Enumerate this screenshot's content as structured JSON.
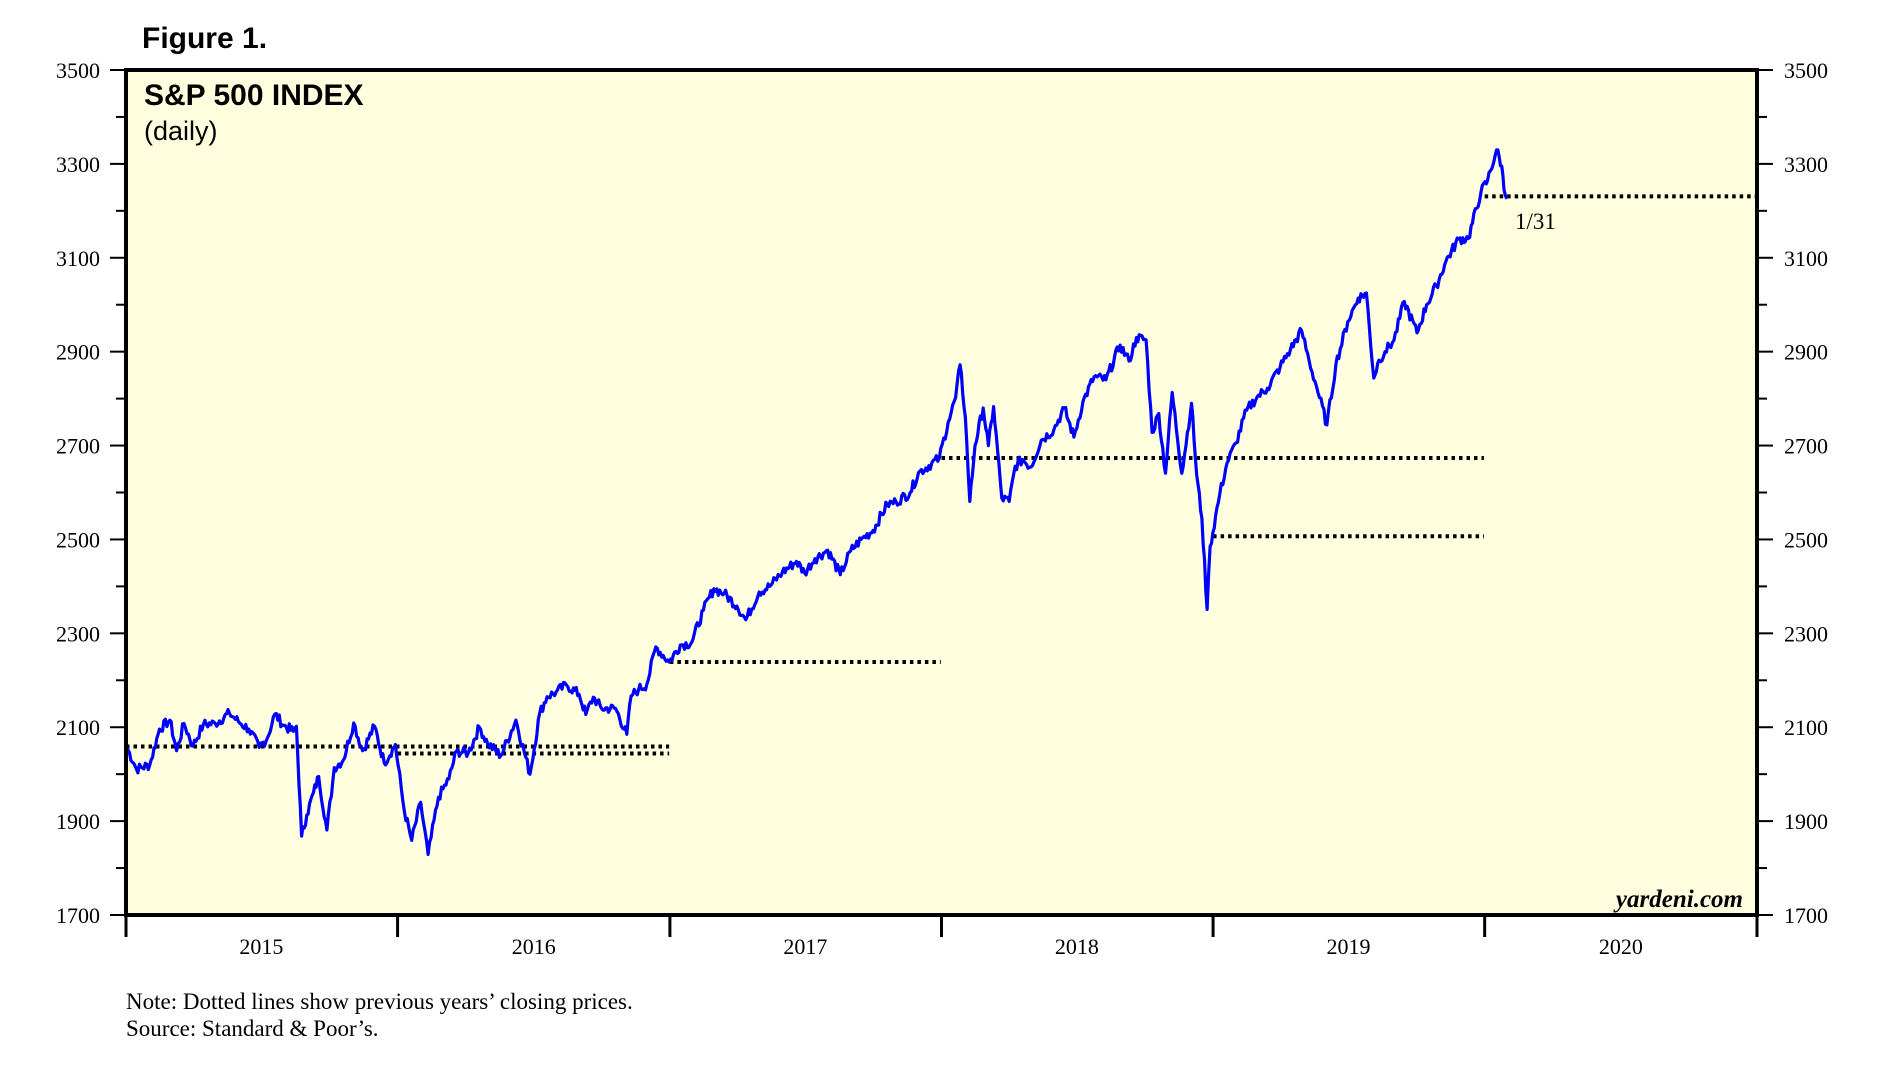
{
  "figure_label": "Figure 1.",
  "note": "Note: Dotted lines show previous years’ closing prices.",
  "source": "Source: Standard & Poor’s.",
  "watermark": "yardeni.com",
  "colors": {
    "plot_background": "#ffffe0",
    "series_line": "#0000ff",
    "reference_lines": "#000000"
  },
  "chart_data": {
    "type": "line",
    "title": "S&P 500 INDEX",
    "subtitle": "(daily)",
    "ylim": [
      1700,
      3500
    ],
    "yticks": [
      1700,
      1900,
      2100,
      2300,
      2500,
      2700,
      2900,
      3100,
      3300,
      3500
    ],
    "xlim": [
      "2015-01-01",
      "2021-01-01"
    ],
    "year_labels": [
      "2015",
      "2016",
      "2017",
      "2018",
      "2019",
      "2020"
    ],
    "grid": false,
    "y_axis_both_sides": true,
    "annotations": [
      {
        "text": "1/31",
        "x": "2020-01-31",
        "y": 3225.5
      }
    ],
    "reference_lines": [
      {
        "y": 2058.9,
        "from": "2015-01-01",
        "to": "2016-12-31"
      },
      {
        "y": 2043.94,
        "from": "2016-01-01",
        "to": "2016-12-31"
      },
      {
        "y": 2238.83,
        "from": "2017-01-01",
        "to": "2017-12-31"
      },
      {
        "y": 2673.61,
        "from": "2018-01-01",
        "to": "2019-12-31"
      },
      {
        "y": 2506.85,
        "from": "2019-01-01",
        "to": "2019-12-31"
      },
      {
        "y": 3230.78,
        "from": "2020-01-01",
        "to": "2020-12-31"
      }
    ],
    "series": [
      {
        "x": [
          "2015-01-02",
          "2015-01-15",
          "2015-02-02",
          "2015-02-15",
          "2015-03-01",
          "2015-03-10",
          "2015-03-20",
          "2015-04-01",
          "2015-04-15",
          "2015-05-01",
          "2015-05-20",
          "2015-06-01",
          "2015-06-15",
          "2015-06-29",
          "2015-07-10",
          "2015-07-20",
          "2015-08-01",
          "2015-08-14",
          "2015-08-18",
          "2015-08-25",
          "2015-09-01",
          "2015-09-10",
          "2015-09-17",
          "2015-09-28",
          "2015-10-08",
          "2015-10-20",
          "2015-11-03",
          "2015-11-15",
          "2015-12-01",
          "2015-12-14",
          "2015-12-29",
          "2016-01-10",
          "2016-01-20",
          "2016-02-01",
          "2016-02-11",
          "2016-02-25",
          "2016-03-10",
          "2016-03-20",
          "2016-04-05",
          "2016-04-20",
          "2016-05-01",
          "2016-05-19",
          "2016-06-08",
          "2016-06-27",
          "2016-07-10",
          "2016-07-20",
          "2016-08-01",
          "2016-08-15",
          "2016-09-01",
          "2016-09-10",
          "2016-09-20",
          "2016-10-01",
          "2016-10-20",
          "2016-11-04",
          "2016-11-10",
          "2016-11-20",
          "2016-12-01",
          "2016-12-13",
          "2016-12-31",
          "2017-01-15",
          "2017-01-30",
          "2017-02-15",
          "2017-03-01",
          "2017-03-15",
          "2017-04-01",
          "2017-04-13",
          "2017-05-01",
          "2017-05-15",
          "2017-06-01",
          "2017-06-20",
          "2017-07-01",
          "2017-07-15",
          "2017-08-01",
          "2017-08-18",
          "2017-09-01",
          "2017-09-15",
          "2017-10-01",
          "2017-10-20",
          "2017-11-01",
          "2017-11-20",
          "2017-12-01",
          "2017-12-29",
          "2018-01-10",
          "2018-01-20",
          "2018-01-26",
          "2018-02-02",
          "2018-02-08",
          "2018-02-15",
          "2018-02-26",
          "2018-03-05",
          "2018-03-12",
          "2018-03-23",
          "2018-04-02",
          "2018-04-10",
          "2018-04-20",
          "2018-05-01",
          "2018-05-15",
          "2018-06-01",
          "2018-06-15",
          "2018-06-28",
          "2018-07-10",
          "2018-07-25",
          "2018-08-10",
          "2018-08-29",
          "2018-09-10",
          "2018-09-20",
          "2018-10-03",
          "2018-10-11",
          "2018-10-20",
          "2018-10-29",
          "2018-11-07",
          "2018-11-20",
          "2018-12-03",
          "2018-12-10",
          "2018-12-17",
          "2018-12-24",
          "2018-12-28",
          "2019-01-10",
          "2019-01-20",
          "2019-02-01",
          "2019-02-15",
          "2019-03-01",
          "2019-03-15",
          "2019-04-01",
          "2019-04-15",
          "2019-04-30",
          "2019-05-10",
          "2019-05-20",
          "2019-06-03",
          "2019-06-15",
          "2019-07-01",
          "2019-07-15",
          "2019-07-26",
          "2019-08-05",
          "2019-08-12",
          "2019-08-20",
          "2019-09-01",
          "2019-09-15",
          "2019-10-02",
          "2019-10-15",
          "2019-10-28",
          "2019-11-10",
          "2019-11-27",
          "2019-12-10",
          "2019-12-27",
          "2020-01-05",
          "2020-01-17",
          "2020-01-24",
          "2020-01-27",
          "2020-01-31"
        ],
        "values": [
          2058,
          2011,
          2020,
          2096,
          2115,
          2050,
          2108,
          2060,
          2106,
          2108,
          2130,
          2112,
          2096,
          2057,
          2077,
          2128,
          2104,
          2091,
          2102,
          1868,
          1913,
          1961,
          1995,
          1881,
          2014,
          2030,
          2109,
          2050,
          2102,
          2024,
          2063,
          1922,
          1859,
          1940,
          1829,
          1951,
          1990,
          2049,
          2045,
          2100,
          2065,
          2040,
          2115,
          2000,
          2130,
          2165,
          2175,
          2190,
          2170,
          2127,
          2164,
          2140,
          2140,
          2085,
          2167,
          2181,
          2191,
          2271,
          2239,
          2275,
          2280,
          2349,
          2395,
          2385,
          2358,
          2329,
          2388,
          2400,
          2430,
          2453,
          2429,
          2459,
          2477,
          2425,
          2476,
          2500,
          2519,
          2575,
          2580,
          2600,
          2642,
          2673,
          2750,
          2802,
          2872,
          2762,
          2581,
          2700,
          2780,
          2700,
          2783,
          2588,
          2581,
          2656,
          2670,
          2654,
          2711,
          2734,
          2780,
          2718,
          2793,
          2846,
          2840,
          2914,
          2880,
          2930,
          2925,
          2728,
          2768,
          2641,
          2813,
          2641,
          2790,
          2637,
          2545,
          2351,
          2485,
          2597,
          2664,
          2706,
          2775,
          2803,
          2822,
          2867,
          2905,
          2945,
          2881,
          2826,
          2744,
          2873,
          2964,
          3014,
          3025,
          2844,
          2882,
          2900,
          2924,
          3007,
          2940,
          3000,
          3040,
          3093,
          3140,
          3141,
          3240,
          3265,
          3330,
          3295,
          3245,
          3225.5
        ]
      }
    ]
  }
}
